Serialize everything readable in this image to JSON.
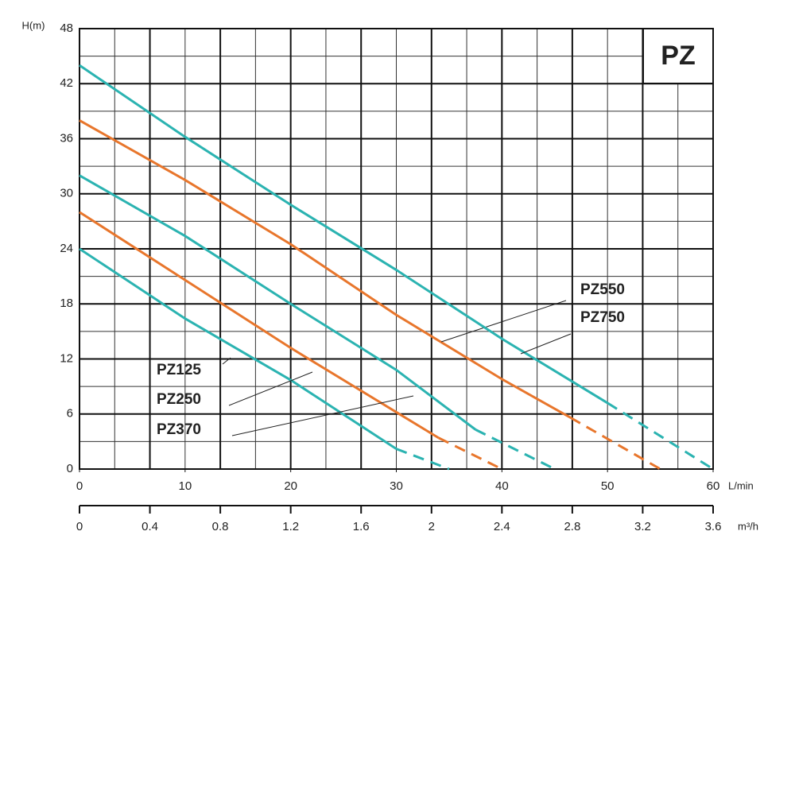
{
  "chart_data": {
    "type": "line",
    "title": "PZ",
    "y_label": "H(m)",
    "x_label": "L/min",
    "x2_label": "m³/h",
    "xlim": [
      0,
      60
    ],
    "xticks": [
      0,
      10,
      20,
      30,
      40,
      50,
      60
    ],
    "x2lim": [
      0,
      3.6
    ],
    "x2ticks": [
      0,
      0.4,
      0.8,
      1.2,
      1.6,
      2,
      2.4,
      2.8,
      3.2,
      3.6
    ],
    "ylim": [
      0,
      48
    ],
    "yticks": [
      0,
      6,
      12,
      18,
      24,
      30,
      36,
      42,
      48
    ],
    "grid": true,
    "series": [
      {
        "name": "PZ125",
        "color": "#2bb3b1",
        "x": [
          0,
          10,
          20,
          30,
          35
        ],
        "values": [
          24,
          16.4,
          9.7,
          2.2,
          0
        ],
        "solid_points": 4
      },
      {
        "name": "PZ250",
        "color": "#e8762c",
        "x": [
          0,
          10,
          20,
          30,
          34,
          40
        ],
        "values": [
          28,
          20.6,
          13.2,
          6.2,
          3.4,
          0
        ],
        "solid_points": 5
      },
      {
        "name": "PZ370",
        "color": "#2bb3b1",
        "x": [
          0,
          10,
          20,
          30,
          37.5,
          45
        ],
        "values": [
          32,
          25.4,
          18,
          10.8,
          4.3,
          0
        ],
        "solid_points": 5
      },
      {
        "name": "PZ550",
        "color": "#e8762c",
        "x": [
          0,
          10,
          20,
          30,
          40,
          46.5,
          55
        ],
        "values": [
          38,
          31.5,
          24.5,
          16.8,
          9.8,
          5.6,
          0
        ],
        "solid_points": 6
      },
      {
        "name": "PZ750",
        "color": "#2bb3b1",
        "x": [
          0,
          10,
          20,
          30,
          40,
          50,
          60
        ],
        "values": [
          44,
          36.2,
          28.8,
          21.7,
          14.2,
          7.2,
          0
        ],
        "solid_points": 6
      }
    ]
  }
}
